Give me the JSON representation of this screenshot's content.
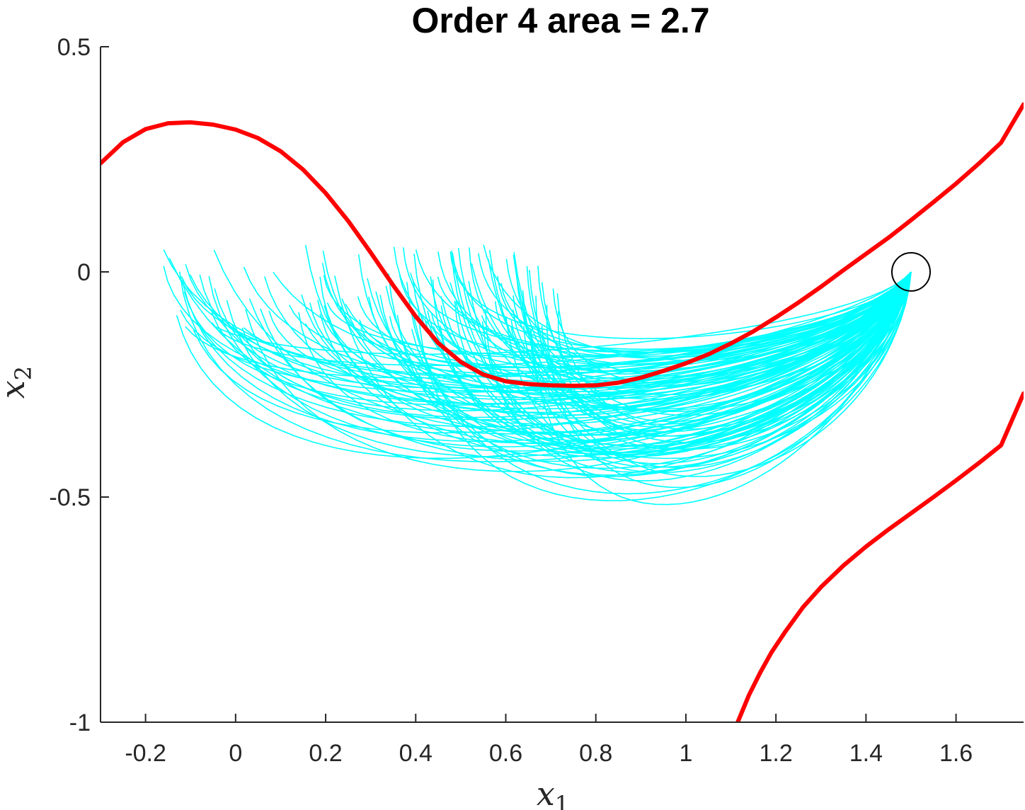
{
  "chart_data": {
    "type": "line",
    "title": "Order 4 area = 2.7",
    "xlabel": {
      "symbol": "x",
      "subscript": "1"
    },
    "ylabel": {
      "symbol": "x",
      "subscript": "2"
    },
    "xlim": [
      -0.3,
      1.75
    ],
    "ylim": [
      -1,
      0.5
    ],
    "xticks": [
      -0.2,
      0,
      0.2,
      0.4,
      0.6,
      0.8,
      1,
      1.2,
      1.4,
      1.6
    ],
    "xtick_labels": [
      "-0.2",
      "0",
      "0.2",
      "0.4",
      "0.6",
      "0.8",
      "1",
      "1.2",
      "1.4",
      "1.6"
    ],
    "yticks": [
      0.5,
      0,
      -0.5,
      -1
    ],
    "ytick_labels": [
      "0.5",
      "0",
      "-0.5",
      "-1"
    ],
    "grid": false,
    "colors": {
      "boundary": "#ff0000",
      "trajectories": "#00ffff",
      "marker": "#000000",
      "axes": "#262626"
    },
    "series": [
      {
        "role": "boundary-upper",
        "x": [
          -0.3,
          -0.25,
          -0.2,
          -0.15,
          -0.1,
          -0.05,
          0.0,
          0.05,
          0.1,
          0.15,
          0.2,
          0.25,
          0.3,
          0.35,
          0.4,
          0.45,
          0.5,
          0.55,
          0.6,
          0.65,
          0.7,
          0.75,
          0.8,
          0.85,
          0.9,
          0.95,
          1.0,
          1.05,
          1.1,
          1.15,
          1.2,
          1.25,
          1.3,
          1.35,
          1.4,
          1.45,
          1.5,
          1.55,
          1.6,
          1.65,
          1.7,
          1.75
        ],
        "y": [
          0.241,
          0.288,
          0.317,
          0.33,
          0.332,
          0.327,
          0.316,
          0.297,
          0.268,
          0.227,
          0.175,
          0.113,
          0.043,
          -0.03,
          -0.099,
          -0.158,
          -0.2,
          -0.228,
          -0.243,
          -0.249,
          -0.252,
          -0.253,
          -0.252,
          -0.246,
          -0.235,
          -0.22,
          -0.203,
          -0.183,
          -0.159,
          -0.132,
          -0.101,
          -0.068,
          -0.033,
          0.004,
          0.04,
          0.076,
          0.115,
          0.155,
          0.196,
          0.24,
          0.287,
          0.372
        ]
      },
      {
        "role": "boundary-lower",
        "x": [
          1.115,
          1.14,
          1.165,
          1.19,
          1.22,
          1.26,
          1.3,
          1.35,
          1.4,
          1.45,
          1.5,
          1.55,
          1.6,
          1.65,
          1.7,
          1.75
        ],
        "y": [
          -1.0,
          -0.94,
          -0.89,
          -0.845,
          -0.8,
          -0.745,
          -0.7,
          -0.652,
          -0.61,
          -0.572,
          -0.536,
          -0.5,
          -0.463,
          -0.425,
          -0.385,
          -0.27
        ]
      }
    ],
    "marker": {
      "shape": "circle",
      "x": 1.5,
      "y": 0.0
    },
    "trajectories": {
      "count": 130,
      "end_point": [
        1.5,
        0.0
      ],
      "start_x_range": [
        -0.16,
        0.72
      ],
      "start_y_range": [
        -0.13,
        0.065
      ],
      "min_y": -0.64
    }
  }
}
